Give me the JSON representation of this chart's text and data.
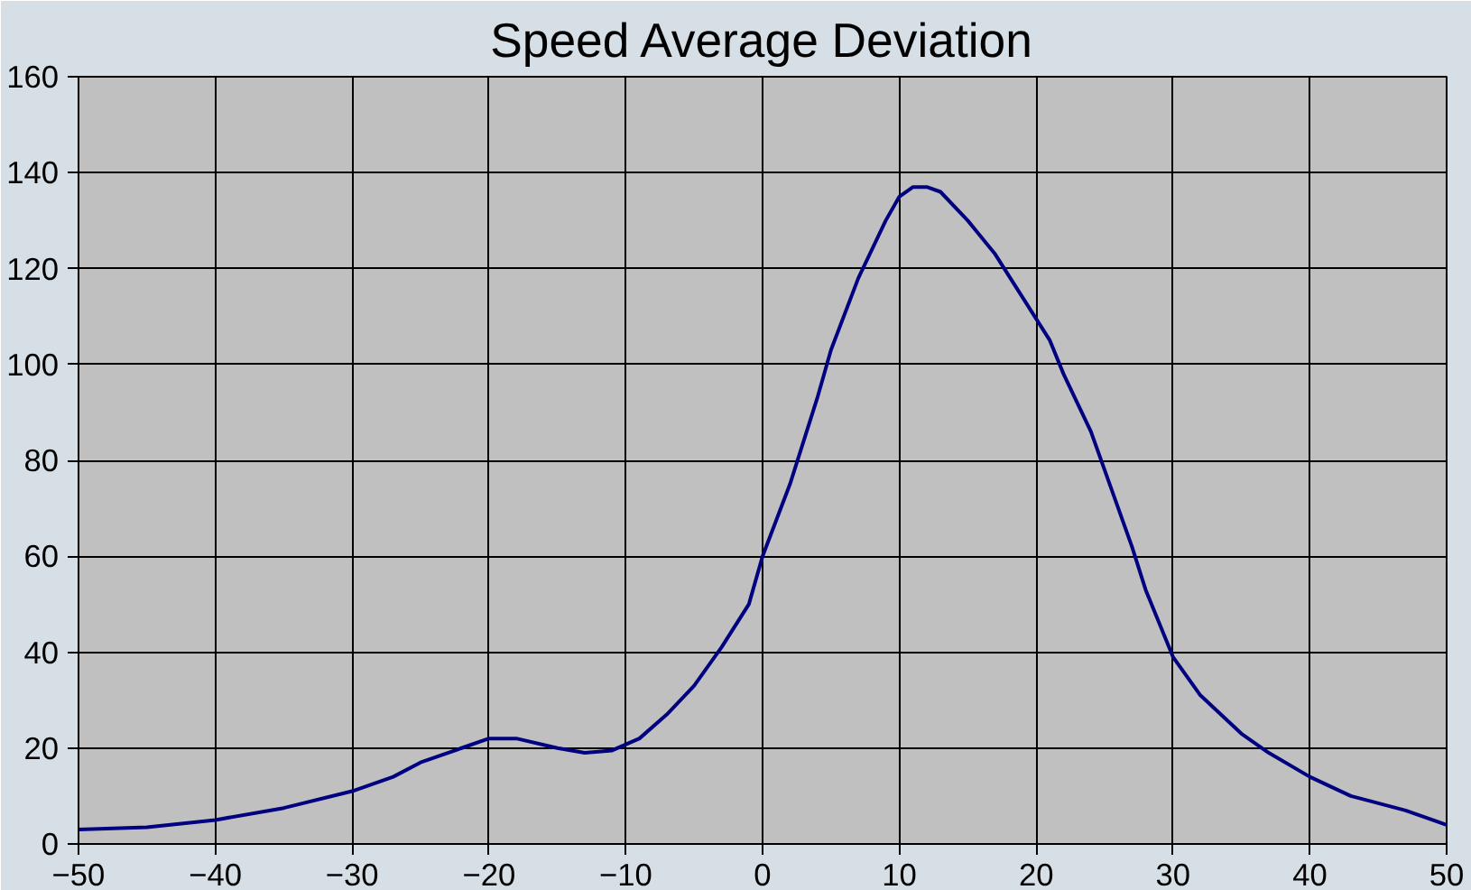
{
  "chart_data": {
    "type": "line",
    "title": "Speed Average Deviation",
    "x": [
      -50,
      -45,
      -40,
      -35,
      -30,
      -27,
      -25,
      -22,
      -20,
      -18,
      -15,
      -13,
      -11,
      -9,
      -7,
      -5,
      -3,
      -1,
      0,
      2,
      4,
      5,
      7,
      9,
      10,
      11,
      12,
      13,
      15,
      17,
      19,
      21,
      22,
      24,
      25,
      27,
      28,
      30,
      32,
      35,
      37,
      40,
      43,
      47,
      50
    ],
    "series": [
      {
        "color": "#000080",
        "values": [
          3,
          3.5,
          5,
          7.5,
          11,
          14,
          17,
          20,
          22,
          22,
          20,
          19,
          19.5,
          22,
          27,
          33,
          41,
          50,
          60,
          75,
          93,
          103,
          118,
          130,
          135,
          137,
          137,
          136,
          130,
          123,
          114,
          105,
          98,
          86,
          78,
          62,
          53,
          39,
          31,
          23,
          19,
          14,
          10,
          7,
          4
        ]
      }
    ],
    "xlim": [
      -50,
      50
    ],
    "xticks": [
      -50,
      -40,
      -30,
      -20,
      -10,
      0,
      10,
      20,
      30,
      40,
      50
    ],
    "ylim": [
      0,
      160
    ],
    "yticks": [
      0,
      20,
      40,
      60,
      80,
      100,
      120,
      140,
      160
    ],
    "grid": true,
    "marker": "none",
    "line_style": "solid"
  }
}
